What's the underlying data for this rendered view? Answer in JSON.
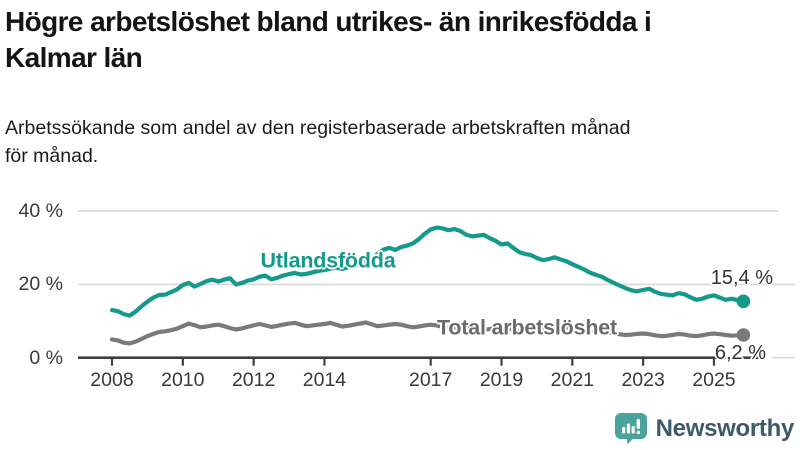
{
  "header": {
    "title_line1": "Högre arbetslöshet bland utrikes- än inrikesfödda i",
    "title_line2": "Kalmar län",
    "subtitle_line1": "Arbetssökande som andel av den registerbaserade arbetskraften månad",
    "subtitle_line2": "för månad."
  },
  "logo": {
    "text": "Newsworthy"
  },
  "colors": {
    "foreign_series": "#14998b",
    "total_series": "#7a7a7a",
    "axis": "#3f3f3f",
    "grid": "#d9d9d9",
    "tick_text": "#3a3a3a",
    "logo_icon": "#4ba39e",
    "logo_text": "#3d5a6b"
  },
  "chart_data": {
    "type": "line",
    "title": "Högre arbetslöshet bland utrikes- än inrikesfödda i Kalmar län",
    "subtitle": "Arbetssökande som andel av den registerbaserade arbetskraften månad för månad.",
    "unit": "%",
    "ylim": [
      0,
      40
    ],
    "xlim": [
      2007.1,
      2027.3
    ],
    "grid": "horizontal",
    "legend_position": "inline-labels",
    "y_ticks": [
      {
        "label": "40 %",
        "value": 40
      },
      {
        "label": "20 %",
        "value": 20
      },
      {
        "label": "0 %",
        "value": 0
      }
    ],
    "x_ticks": [
      {
        "label": "2008",
        "year": 2008
      },
      {
        "label": "2010",
        "year": 2010
      },
      {
        "label": "2012",
        "year": 2012
      },
      {
        "label": "2014",
        "year": 2014
      },
      {
        "label": "2017",
        "year": 2017
      },
      {
        "label": "2019",
        "year": 2019
      },
      {
        "label": "2021",
        "year": 2021
      },
      {
        "label": "2023",
        "year": 2023
      },
      {
        "label": "2025",
        "year": 2025
      }
    ],
    "series": [
      {
        "name": "Utlandsfödda",
        "color": "#14998b",
        "end_label": "15,4 %",
        "end_value": 15.4,
        "points": [
          [
            2008.0,
            13.0
          ],
          [
            2008.17,
            12.7
          ],
          [
            2008.33,
            11.9
          ],
          [
            2008.5,
            11.5
          ],
          [
            2008.67,
            12.6
          ],
          [
            2008.83,
            14.0
          ],
          [
            2009.0,
            15.3
          ],
          [
            2009.17,
            16.4
          ],
          [
            2009.33,
            17.1
          ],
          [
            2009.5,
            17.2
          ],
          [
            2009.67,
            17.9
          ],
          [
            2009.83,
            18.6
          ],
          [
            2010.0,
            19.8
          ],
          [
            2010.17,
            20.4
          ],
          [
            2010.33,
            19.4
          ],
          [
            2010.5,
            20.1
          ],
          [
            2010.67,
            20.9
          ],
          [
            2010.83,
            21.3
          ],
          [
            2011.0,
            20.8
          ],
          [
            2011.17,
            21.3
          ],
          [
            2011.33,
            21.7
          ],
          [
            2011.5,
            20.0
          ],
          [
            2011.67,
            20.4
          ],
          [
            2011.83,
            21.0
          ],
          [
            2012.0,
            21.4
          ],
          [
            2012.17,
            22.1
          ],
          [
            2012.33,
            22.4
          ],
          [
            2012.5,
            21.4
          ],
          [
            2012.67,
            21.8
          ],
          [
            2012.83,
            22.4
          ],
          [
            2013.0,
            22.8
          ],
          [
            2013.17,
            23.1
          ],
          [
            2013.33,
            22.7
          ],
          [
            2013.5,
            22.9
          ],
          [
            2013.67,
            23.3
          ],
          [
            2013.83,
            23.7
          ],
          [
            2014.0,
            23.9
          ],
          [
            2014.17,
            24.3
          ],
          [
            2014.33,
            24.6
          ],
          [
            2014.5,
            24.2
          ],
          [
            2014.67,
            24.7
          ],
          [
            2014.83,
            25.1
          ],
          [
            2015.0,
            25.5
          ],
          [
            2015.17,
            26.1
          ],
          [
            2015.33,
            26.9
          ],
          [
            2015.5,
            28.3
          ],
          [
            2015.67,
            29.5
          ],
          [
            2015.83,
            30.0
          ],
          [
            2016.0,
            29.4
          ],
          [
            2016.17,
            30.2
          ],
          [
            2016.33,
            30.6
          ],
          [
            2016.5,
            31.2
          ],
          [
            2016.67,
            32.4
          ],
          [
            2016.83,
            33.8
          ],
          [
            2017.0,
            35.0
          ],
          [
            2017.17,
            35.5
          ],
          [
            2017.33,
            35.3
          ],
          [
            2017.5,
            34.8
          ],
          [
            2017.67,
            35.1
          ],
          [
            2017.83,
            34.6
          ],
          [
            2018.0,
            33.6
          ],
          [
            2018.17,
            33.1
          ],
          [
            2018.33,
            33.3
          ],
          [
            2018.5,
            33.5
          ],
          [
            2018.67,
            32.6
          ],
          [
            2018.83,
            31.9
          ],
          [
            2019.0,
            30.9
          ],
          [
            2019.17,
            31.2
          ],
          [
            2019.33,
            30.0
          ],
          [
            2019.5,
            28.8
          ],
          [
            2019.67,
            28.3
          ],
          [
            2019.83,
            28.0
          ],
          [
            2020.0,
            27.2
          ],
          [
            2020.17,
            26.6
          ],
          [
            2020.33,
            26.9
          ],
          [
            2020.5,
            27.4
          ],
          [
            2020.67,
            26.8
          ],
          [
            2020.83,
            26.3
          ],
          [
            2021.0,
            25.5
          ],
          [
            2021.17,
            24.8
          ],
          [
            2021.33,
            24.1
          ],
          [
            2021.5,
            23.2
          ],
          [
            2021.67,
            22.6
          ],
          [
            2021.83,
            22.1
          ],
          [
            2022.0,
            21.2
          ],
          [
            2022.17,
            20.4
          ],
          [
            2022.33,
            19.7
          ],
          [
            2022.5,
            19.0
          ],
          [
            2022.67,
            18.4
          ],
          [
            2022.83,
            18.1
          ],
          [
            2023.0,
            18.5
          ],
          [
            2023.17,
            18.8
          ],
          [
            2023.33,
            18.0
          ],
          [
            2023.5,
            17.4
          ],
          [
            2023.67,
            17.2
          ],
          [
            2023.83,
            17.0
          ],
          [
            2024.0,
            17.6
          ],
          [
            2024.17,
            17.3
          ],
          [
            2024.33,
            16.5
          ],
          [
            2024.5,
            15.8
          ],
          [
            2024.67,
            16.1
          ],
          [
            2024.83,
            16.7
          ],
          [
            2025.0,
            17.0
          ],
          [
            2025.17,
            16.4
          ],
          [
            2025.33,
            15.8
          ],
          [
            2025.5,
            16.1
          ],
          [
            2025.67,
            15.7
          ],
          [
            2025.83,
            15.4
          ]
        ]
      },
      {
        "name": "Total arbetslöshet",
        "color": "#7a7a7a",
        "end_label": "6,2 %",
        "end_value": 6.2,
        "points": [
          [
            2008.0,
            5.0
          ],
          [
            2008.17,
            4.7
          ],
          [
            2008.33,
            4.1
          ],
          [
            2008.5,
            3.9
          ],
          [
            2008.67,
            4.4
          ],
          [
            2008.83,
            5.1
          ],
          [
            2009.0,
            5.9
          ],
          [
            2009.17,
            6.5
          ],
          [
            2009.33,
            7.0
          ],
          [
            2009.5,
            7.2
          ],
          [
            2009.67,
            7.5
          ],
          [
            2009.83,
            7.9
          ],
          [
            2010.0,
            8.6
          ],
          [
            2010.17,
            9.3
          ],
          [
            2010.33,
            8.9
          ],
          [
            2010.5,
            8.3
          ],
          [
            2010.67,
            8.5
          ],
          [
            2010.83,
            8.8
          ],
          [
            2011.0,
            9.0
          ],
          [
            2011.17,
            8.6
          ],
          [
            2011.33,
            8.1
          ],
          [
            2011.5,
            7.7
          ],
          [
            2011.67,
            8.0
          ],
          [
            2011.83,
            8.4
          ],
          [
            2012.0,
            8.8
          ],
          [
            2012.17,
            9.2
          ],
          [
            2012.33,
            8.8
          ],
          [
            2012.5,
            8.4
          ],
          [
            2012.67,
            8.7
          ],
          [
            2012.83,
            9.0
          ],
          [
            2013.0,
            9.3
          ],
          [
            2013.17,
            9.5
          ],
          [
            2013.33,
            9.0
          ],
          [
            2013.5,
            8.6
          ],
          [
            2013.67,
            8.8
          ],
          [
            2013.83,
            9.0
          ],
          [
            2014.0,
            9.2
          ],
          [
            2014.17,
            9.5
          ],
          [
            2014.33,
            9.0
          ],
          [
            2014.5,
            8.5
          ],
          [
            2014.67,
            8.7
          ],
          [
            2014.83,
            9.0
          ],
          [
            2015.0,
            9.3
          ],
          [
            2015.17,
            9.6
          ],
          [
            2015.33,
            9.1
          ],
          [
            2015.5,
            8.6
          ],
          [
            2015.67,
            8.8
          ],
          [
            2015.83,
            9.0
          ],
          [
            2016.0,
            9.2
          ],
          [
            2016.17,
            9.0
          ],
          [
            2016.33,
            8.6
          ],
          [
            2016.5,
            8.3
          ],
          [
            2016.67,
            8.5
          ],
          [
            2016.83,
            8.8
          ],
          [
            2017.0,
            9.0
          ],
          [
            2017.17,
            8.8
          ],
          [
            2017.33,
            8.4
          ],
          [
            2017.5,
            8.0
          ],
          [
            2017.67,
            8.2
          ],
          [
            2017.83,
            8.4
          ],
          [
            2018.0,
            8.6
          ],
          [
            2018.17,
            8.3
          ],
          [
            2018.33,
            7.9
          ],
          [
            2018.5,
            7.6
          ],
          [
            2018.67,
            7.8
          ],
          [
            2018.83,
            8.0
          ],
          [
            2019.0,
            8.2
          ],
          [
            2019.17,
            8.0
          ],
          [
            2019.33,
            7.7
          ],
          [
            2019.5,
            7.4
          ],
          [
            2019.67,
            7.6
          ],
          [
            2019.83,
            7.8
          ],
          [
            2020.0,
            8.0
          ],
          [
            2020.17,
            8.3
          ],
          [
            2020.33,
            8.6
          ],
          [
            2020.5,
            8.8
          ],
          [
            2020.67,
            8.5
          ],
          [
            2020.83,
            8.3
          ],
          [
            2021.0,
            8.1
          ],
          [
            2021.17,
            7.9
          ],
          [
            2021.33,
            7.6
          ],
          [
            2021.5,
            7.3
          ],
          [
            2021.67,
            7.1
          ],
          [
            2021.83,
            7.0
          ],
          [
            2022.0,
            6.9
          ],
          [
            2022.17,
            6.7
          ],
          [
            2022.33,
            6.4
          ],
          [
            2022.5,
            6.2
          ],
          [
            2022.67,
            6.3
          ],
          [
            2022.83,
            6.5
          ],
          [
            2023.0,
            6.6
          ],
          [
            2023.17,
            6.4
          ],
          [
            2023.33,
            6.1
          ],
          [
            2023.5,
            5.9
          ],
          [
            2023.67,
            6.0
          ],
          [
            2023.83,
            6.2
          ],
          [
            2024.0,
            6.5
          ],
          [
            2024.17,
            6.3
          ],
          [
            2024.33,
            6.0
          ],
          [
            2024.5,
            5.9
          ],
          [
            2024.67,
            6.1
          ],
          [
            2024.83,
            6.4
          ],
          [
            2025.0,
            6.6
          ],
          [
            2025.17,
            6.4
          ],
          [
            2025.33,
            6.2
          ],
          [
            2025.5,
            6.0
          ],
          [
            2025.67,
            6.1
          ],
          [
            2025.83,
            6.2
          ]
        ]
      }
    ]
  }
}
